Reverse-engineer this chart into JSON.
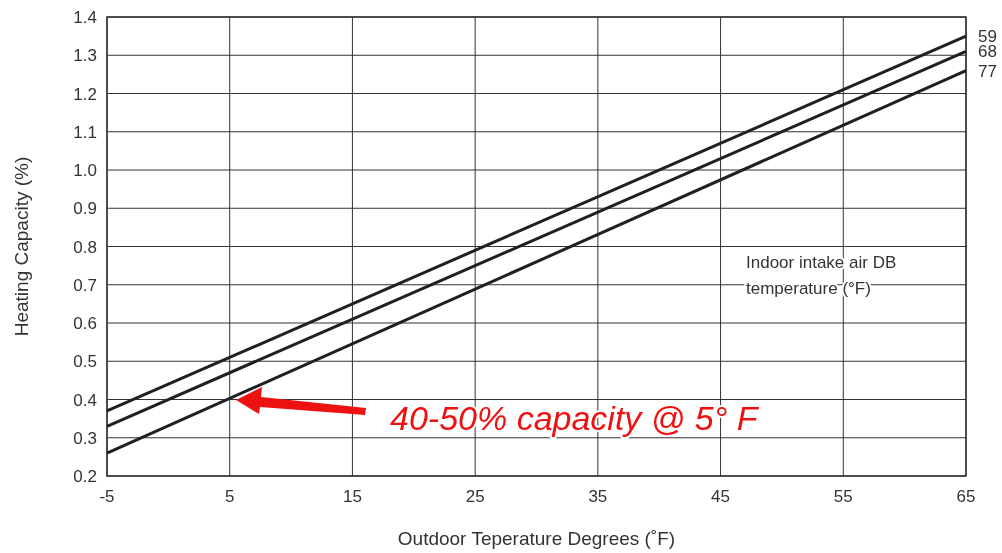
{
  "chart_data": {
    "type": "line",
    "xlabel": "Outdoor Teperature Degrees (˚F)",
    "ylabel": "Heating Capacity (%)",
    "x": [
      -5,
      65
    ],
    "series": [
      {
        "name": "59",
        "color": "#231f20",
        "values": [
          0.37,
          1.35
        ]
      },
      {
        "name": "68",
        "color": "#231f20",
        "values": [
          0.33,
          1.31
        ]
      },
      {
        "name": "77",
        "color": "#231f20",
        "values": [
          0.26,
          1.26
        ]
      }
    ],
    "xlim": [
      -5,
      65
    ],
    "xticks": [
      -5,
      5,
      15,
      25,
      35,
      45,
      55,
      65
    ],
    "ylim": [
      0.2,
      1.4
    ],
    "yticks": [
      0.2,
      0.3,
      0.4,
      0.5,
      0.6,
      0.7,
      0.8,
      0.9,
      {
        "value": 1,
        "label": "1.0"
      },
      1.1,
      1.2,
      1.3,
      1.4
    ],
    "grid": true,
    "marker": "none",
    "line_style": "solid",
    "annotations": [
      "Indoor intake air DB temperature (°F)",
      "40-50% capacity @ 5° F"
    ]
  }
}
